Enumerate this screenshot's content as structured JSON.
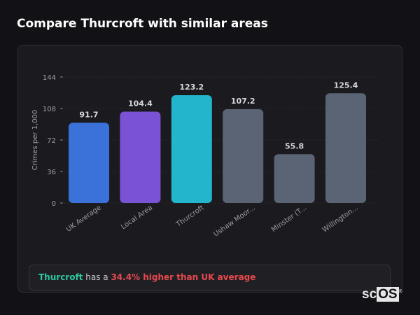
{
  "page": {
    "title": "Compare Thurcroft with similar areas"
  },
  "chart_data": {
    "type": "bar",
    "categories": [
      "UK Average",
      "Local Area",
      "Thurcroft",
      "Ushaw Moor...",
      "Minster (T...",
      "Willington..."
    ],
    "values": [
      91.7,
      104.4,
      123.2,
      107.2,
      55.8,
      125.4
    ],
    "value_labels": [
      "91.7",
      "104.4",
      "123.2",
      "107.2",
      "55.8",
      "125.4"
    ],
    "colors": [
      "#3a72d9",
      "#7a52d4",
      "#22b5cc",
      "#5a6475",
      "#5a6475",
      "#5a6475"
    ],
    "xlabel": "",
    "ylabel": "Crimes per 1,000",
    "ylim": [
      0,
      144
    ],
    "yticks": [
      0,
      36,
      72,
      108,
      144
    ],
    "grid": true,
    "legend": "none"
  },
  "summary": {
    "area": "Thurcroft",
    "middle": " has a ",
    "comparison": "34.4% higher than UK average",
    "colors": {
      "area": "#2cc7a0",
      "comparison": "#e5484d"
    }
  },
  "logo": {
    "text_a": "sc",
    "text_b": "OS",
    "mark": "®"
  }
}
